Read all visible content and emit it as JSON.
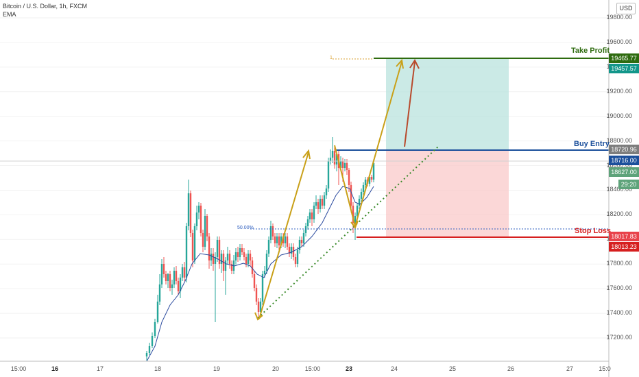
{
  "header": {
    "symbol": "Bitcoin / U.S. Dollar, 1h, FXCM",
    "indicator": "EMA"
  },
  "currency_button": "USD",
  "price_axis": {
    "ticks": [
      "19800.00",
      "19600.00",
      "19400.00",
      "19200.00",
      "19000.00",
      "18800.00",
      "18600.00",
      "18400.00",
      "18200.00",
      "18000.00",
      "17800.00",
      "17600.00",
      "17400.00",
      "17200.00"
    ],
    "tick_values": [
      19800,
      19600,
      19400,
      19200,
      19000,
      18800,
      18600,
      18400,
      18200,
      18000,
      17800,
      17600,
      17400,
      17200
    ],
    "top_tick": "19800.00"
  },
  "time_axis": {
    "labels": [
      {
        "text": "15:00",
        "bold": false
      },
      {
        "text": "16",
        "bold": true
      },
      {
        "text": "17",
        "bold": false
      },
      {
        "text": "18",
        "bold": false
      },
      {
        "text": "19",
        "bold": false
      },
      {
        "text": "20",
        "bold": false
      },
      {
        "text": "15:00",
        "bold": false
      },
      {
        "text": "23",
        "bold": true
      },
      {
        "text": "24",
        "bold": false
      },
      {
        "text": "25",
        "bold": false
      },
      {
        "text": "26",
        "bold": false
      },
      {
        "text": "27",
        "bold": false
      },
      {
        "text": "15:0",
        "bold": false
      }
    ]
  },
  "price_tags": {
    "take_profit": {
      "text": "19465.77",
      "color": "#2e6b0f"
    },
    "tp_zone": {
      "text": "19457.57",
      "color": "#12968a"
    },
    "buy_entry": {
      "text": "18720.96",
      "color": "#7d7d7d"
    },
    "buy_entry_line": {
      "text": "18716.00",
      "color": "#1b4f9b"
    },
    "last_price": {
      "text": "18627.00",
      "color": "#5ea37a"
    },
    "countdown": {
      "text": "29:20",
      "color": "#5ea37a"
    },
    "stop_loss_zone": {
      "text": "18017.83",
      "color": "#e8414a"
    },
    "stop_loss": {
      "text": "18013.23",
      "color": "#d61f1f"
    }
  },
  "annotations": {
    "take_profit": {
      "label": "Take Profit",
      "color": "#2e6b0f",
      "price": 19465.77
    },
    "buy_entry": {
      "label": "Buy Entry",
      "color": "#1b4f9b",
      "price": 18716.0
    },
    "stop_loss": {
      "label": "Stop Loss",
      "color": "#d61f1f",
      "price": 18013.23
    },
    "fib_50": {
      "label": "50.00%",
      "price": 18100
    },
    "fib_1": {
      "label": "1"
    }
  },
  "colors": {
    "candle_up": "#26a69a",
    "candle_down": "#ef5350",
    "ema": "#2a4a9e",
    "profit_zone": "#b9e3de",
    "loss_zone": "#f9c9c9",
    "projection_arrow": "#c9a018",
    "trend_dotted": "#3a8a2a",
    "red_arrow": "#b84a2c"
  }
}
